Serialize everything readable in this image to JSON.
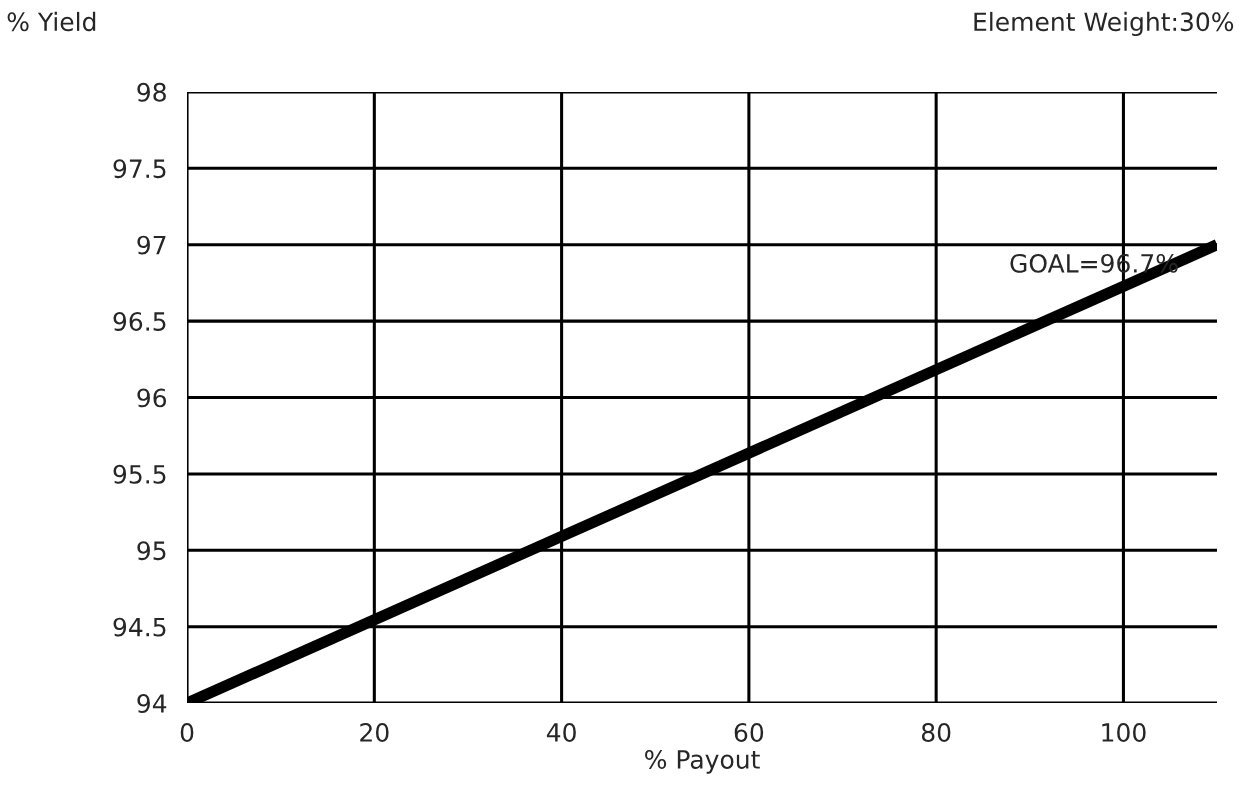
{
  "chart_data": {
    "type": "line",
    "title": "Element Weight:30%",
    "xlabel": "% Payout",
    "ylabel": "% Yield",
    "x": [
      0,
      110
    ],
    "series": [
      {
        "color": "#000000",
        "values": [
          94,
          97
        ]
      }
    ],
    "xlim": [
      0,
      110
    ],
    "xticks": [
      0,
      20,
      40,
      60,
      80,
      100
    ],
    "ylim": [
      94,
      98
    ],
    "yticks": [
      94,
      94.5,
      95,
      95.5,
      96,
      96.5,
      97,
      97.5,
      98
    ],
    "grid": true,
    "marker": "none",
    "line_style": "solid",
    "annotations": [
      {
        "text": "GOAL=96.7%",
        "x": 100,
        "y": 96.7
      }
    ]
  }
}
